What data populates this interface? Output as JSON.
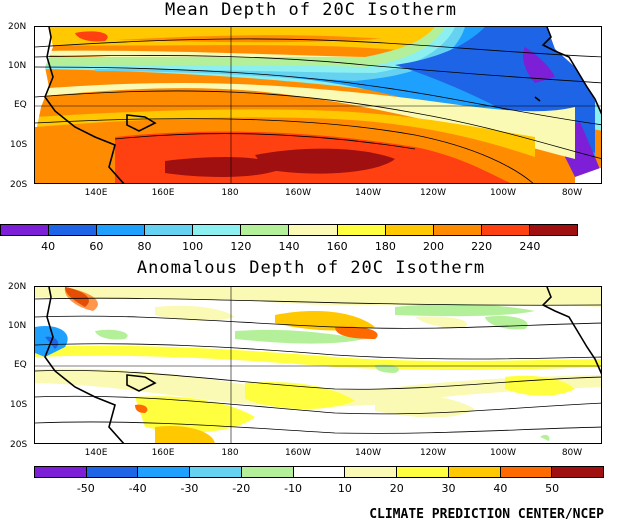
{
  "mean": {
    "title": "Mean Depth of 20C Isotherm",
    "colorbar_labels": [
      "40",
      "60",
      "80",
      "100",
      "120",
      "140",
      "160",
      "180",
      "200",
      "220",
      "240"
    ],
    "colors": [
      "#7d1fd6",
      "#1e64e6",
      "#1ea0ff",
      "#64d2f0",
      "#8cf0f0",
      "#b4f09a",
      "#fafab4",
      "#ffff40",
      "#ffc800",
      "#ff8c00",
      "#ff4010",
      "#a01010"
    ]
  },
  "anom": {
    "title": "Anomalous Depth of 20C Isotherm",
    "colorbar_labels": [
      "-50",
      "-40",
      "-30",
      "-20",
      "-10",
      "10",
      "20",
      "30",
      "40",
      "50"
    ],
    "colors": [
      "#7d1fd6",
      "#1e64e6",
      "#1ea0ff",
      "#64d2f0",
      "#b4f09a",
      "#ffffff",
      "#fafab4",
      "#ffff40",
      "#ffc800",
      "#ff6a00",
      "#a01010"
    ]
  },
  "axes": {
    "lat_labels": [
      "20N",
      "10N",
      "EQ",
      "10S",
      "20S"
    ],
    "lon_labels": [
      "140E",
      "160E",
      "180",
      "160W",
      "140W",
      "120W",
      "100W",
      "80W"
    ]
  },
  "credit": "CLIMATE PREDICTION CENTER/NCEP"
}
